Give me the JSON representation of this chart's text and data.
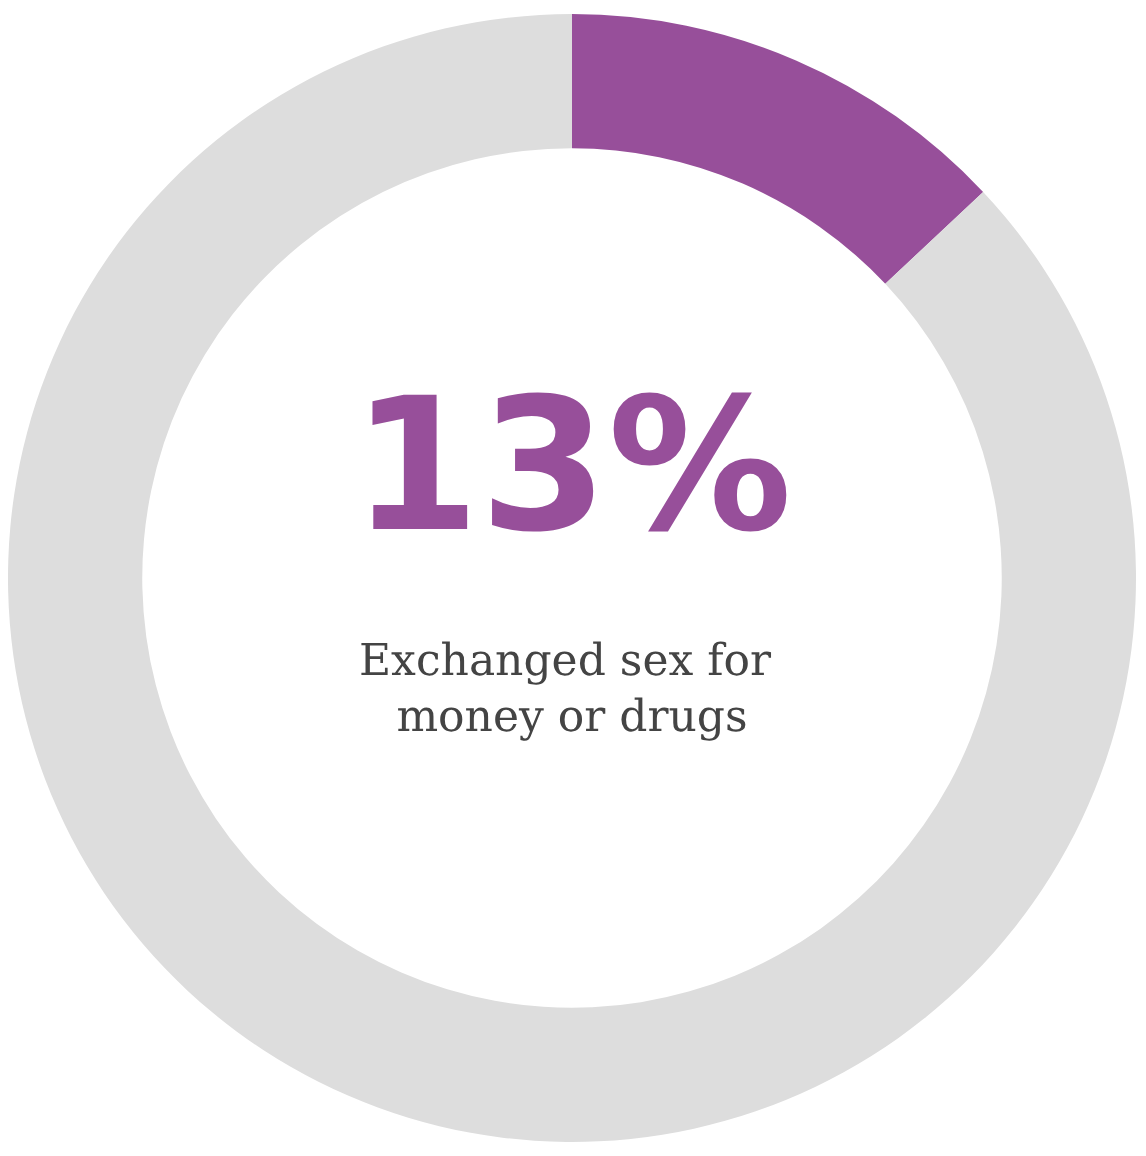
{
  "chart_data": {
    "type": "donut",
    "categories": [
      null,
      null
    ],
    "values": [
      13,
      87
    ],
    "colors": [
      "#974f9a",
      "#dddddd"
    ],
    "value_labels": [
      "13%",
      null
    ],
    "annotations": [
      "Exchanged sex for money or drugs"
    ]
  }
}
